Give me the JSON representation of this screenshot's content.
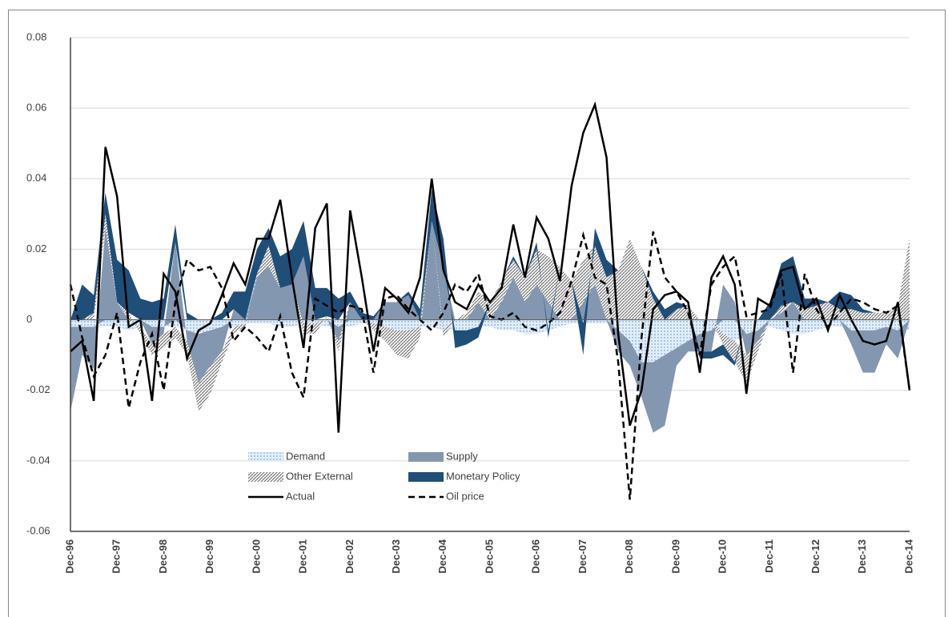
{
  "chart_data": {
    "type": "stacked-area-line",
    "categories": [
      "Dec-96",
      null,
      null,
      null,
      "Dec-97",
      null,
      null,
      null,
      "Dec-98",
      null,
      null,
      null,
      "Dec-99",
      null,
      null,
      null,
      "Dec-00",
      null,
      null,
      null,
      "Dec-01",
      null,
      null,
      null,
      "Dec-02",
      null,
      null,
      null,
      "Dec-03",
      null,
      null,
      null,
      "Dec-04",
      null,
      null,
      null,
      "Dec-05",
      null,
      null,
      null,
      "Dec-06",
      null,
      null,
      null,
      "Dec-07",
      null,
      null,
      null,
      "Dec-08",
      null,
      null,
      null,
      "Dec-09",
      null,
      null,
      null,
      "Dec-10",
      null,
      null,
      null,
      "Dec-11",
      null,
      null,
      null,
      "Dec-12",
      null,
      null,
      null,
      "Dec-13",
      null,
      null,
      null,
      "Dec-14"
    ],
    "series": [
      {
        "name": "Demand",
        "kind": "area",
        "color": "#bdd7ee",
        "pattern": "dots",
        "values": [
          -0.002,
          -0.002,
          -0.002,
          -0.002,
          -0.002,
          -0.003,
          -0.002,
          -0.002,
          -0.002,
          -0.002,
          -0.003,
          -0.004,
          -0.003,
          -0.002,
          -0.002,
          -0.001,
          -0.001,
          -0.001,
          -0.002,
          -0.002,
          -0.001,
          -0.001,
          -0.002,
          -0.002,
          -0.002,
          -0.001,
          -0.001,
          -0.002,
          -0.003,
          -0.003,
          -0.002,
          -0.002,
          -0.003,
          -0.003,
          -0.003,
          -0.002,
          -0.002,
          -0.003,
          -0.003,
          -0.004,
          -0.004,
          -0.003,
          -0.002,
          -0.001,
          -0.001,
          -0.001,
          -0.001,
          -0.003,
          -0.006,
          -0.012,
          -0.012,
          -0.01,
          -0.008,
          -0.006,
          -0.004,
          -0.003,
          -0.004,
          -0.006,
          -0.004,
          -0.003,
          -0.002,
          -0.003,
          -0.004,
          -0.004,
          -0.003,
          -0.002,
          -0.002,
          -0.003,
          -0.003,
          -0.003,
          -0.002,
          -0.003,
          -0.003
        ]
      },
      {
        "name": "Supply",
        "kind": "area",
        "color": "#8497b0",
        "pattern": "solid",
        "values": [
          -0.024,
          -0.008,
          -0.012,
          0.026,
          0.005,
          0.0,
          0.0,
          -0.005,
          -0.002,
          0.022,
          -0.003,
          -0.014,
          -0.01,
          -0.007,
          0.003,
          0.0,
          0.012,
          0.015,
          0.009,
          0.01,
          0.018,
          0.0,
          0.0,
          -0.004,
          0.005,
          0.0,
          0.0,
          0.005,
          0.005,
          0.007,
          0.0,
          0.028,
          0.015,
          0.0,
          0.0,
          0.005,
          0.0,
          0.005,
          0.012,
          0.005,
          0.01,
          0.005,
          0.0,
          0.0,
          0.005,
          0.01,
          0.0,
          -0.006,
          -0.007,
          -0.01,
          -0.02,
          -0.02,
          -0.005,
          -0.003,
          -0.005,
          -0.006,
          0.01,
          0.005,
          -0.006,
          -0.003,
          0.0,
          0.002,
          0.005,
          0.0,
          0.0,
          0.0,
          0.0,
          -0.004,
          -0.012,
          -0.012,
          -0.005,
          -0.008,
          0.0
        ]
      },
      {
        "name": "Other External",
        "kind": "area",
        "color": "#7f7f7f",
        "pattern": "hatch",
        "values": [
          0.0,
          0.0,
          0.002,
          0.004,
          0.0,
          0.002,
          -0.002,
          -0.003,
          -0.004,
          -0.003,
          -0.004,
          -0.008,
          -0.008,
          -0.003,
          -0.002,
          -0.001,
          0.001,
          0.006,
          0.0,
          0.0,
          -0.003,
          -0.003,
          0.001,
          -0.003,
          0.0,
          0.0,
          -0.002,
          -0.004,
          -0.007,
          -0.008,
          -0.003,
          0.0,
          -0.002,
          0.0,
          0.002,
          0.003,
          0.005,
          0.006,
          0.005,
          0.007,
          0.01,
          0.013,
          0.015,
          0.011,
          0.012,
          0.011,
          0.012,
          0.014,
          0.023,
          0.015,
          0.006,
          0.0,
          0.003,
          0.004,
          0.0,
          0.0,
          -0.003,
          -0.006,
          -0.008,
          -0.003,
          0.0,
          0.002,
          0.0,
          0.003,
          0.004,
          0.005,
          0.003,
          0.003,
          0.002,
          0.002,
          0.002,
          0.004,
          0.023
        ]
      },
      {
        "name": "Monetary Policy",
        "kind": "area",
        "color": "#1f4e79",
        "pattern": "solid",
        "values": [
          0.0,
          0.01,
          0.005,
          0.006,
          0.012,
          0.012,
          0.006,
          0.005,
          0.006,
          0.005,
          0.002,
          0.0,
          0.0,
          0.002,
          0.005,
          0.008,
          0.007,
          0.005,
          0.009,
          0.01,
          0.01,
          0.009,
          0.008,
          0.006,
          0.003,
          0.002,
          0.001,
          0.0,
          0.0,
          0.001,
          0.003,
          0.009,
          0.008,
          -0.005,
          -0.004,
          -0.003,
          0.0,
          0.0,
          0.001,
          0.0,
          0.002,
          -0.002,
          0.0,
          0.0,
          -0.009,
          0.005,
          0.005,
          0.0,
          0.0,
          0.0,
          0.002,
          0.003,
          0.002,
          0.0,
          -0.002,
          -0.002,
          -0.003,
          -0.001,
          0.0,
          0.0,
          0.005,
          0.012,
          0.013,
          0.003,
          0.002,
          0.0,
          0.005,
          0.004,
          0.001,
          0.0,
          0.0,
          0.0,
          0.0
        ]
      },
      {
        "name": "Actual",
        "kind": "line",
        "color": "#000000",
        "dashed": false,
        "values": [
          -0.009,
          -0.006,
          -0.023,
          0.049,
          0.035,
          -0.002,
          0.0,
          -0.023,
          0.013,
          0.008,
          -0.011,
          -0.003,
          -0.001,
          0.007,
          0.016,
          0.01,
          0.023,
          0.023,
          0.034,
          0.012,
          -0.008,
          0.026,
          0.033,
          -0.032,
          0.031,
          0.012,
          -0.009,
          0.009,
          0.006,
          0.002,
          0.012,
          0.04,
          0.014,
          0.005,
          0.003,
          0.01,
          0.005,
          0.009,
          0.027,
          0.012,
          0.029,
          0.023,
          0.011,
          0.038,
          0.053,
          0.061,
          0.046,
          -0.004,
          -0.03,
          -0.02,
          0.003,
          0.007,
          0.008,
          0.005,
          -0.015,
          0.012,
          0.018,
          0.01,
          -0.021,
          0.006,
          0.004,
          0.014,
          0.015,
          0.003,
          0.006,
          -0.003,
          0.007,
          0.0,
          -0.006,
          -0.007,
          -0.006,
          0.005,
          -0.02
        ]
      },
      {
        "name": "Oil price",
        "kind": "line",
        "color": "#000000",
        "dashed": true,
        "values": [
          0.01,
          -0.005,
          -0.016,
          -0.01,
          0.002,
          -0.025,
          -0.012,
          -0.004,
          -0.02,
          0.005,
          0.017,
          0.014,
          0.015,
          0.009,
          -0.006,
          -0.002,
          -0.005,
          -0.009,
          0.001,
          -0.015,
          -0.022,
          0.006,
          0.004,
          0.002,
          0.004,
          0.003,
          -0.015,
          0.006,
          0.007,
          0.003,
          0.0,
          -0.003,
          0.002,
          0.01,
          0.008,
          0.013,
          0.001,
          0.0,
          0.002,
          -0.002,
          -0.003,
          -0.001,
          0.002,
          0.011,
          0.024,
          0.012,
          0.01,
          -0.012,
          -0.051,
          -0.005,
          0.025,
          0.012,
          0.008,
          0.002,
          -0.01,
          0.01,
          0.015,
          0.018,
          0.001,
          0.002,
          0.003,
          0.013,
          -0.015,
          0.013,
          0.003,
          -0.002,
          0.002,
          0.006,
          0.005,
          0.003,
          0.002,
          0.004,
          -0.02
        ]
      }
    ],
    "ylim": [
      -0.06,
      0.08
    ],
    "yticks": [
      -0.06,
      -0.04,
      -0.02,
      0,
      0.02,
      0.04,
      0.06,
      0.08
    ],
    "grid": true,
    "legend": "lower-center"
  }
}
